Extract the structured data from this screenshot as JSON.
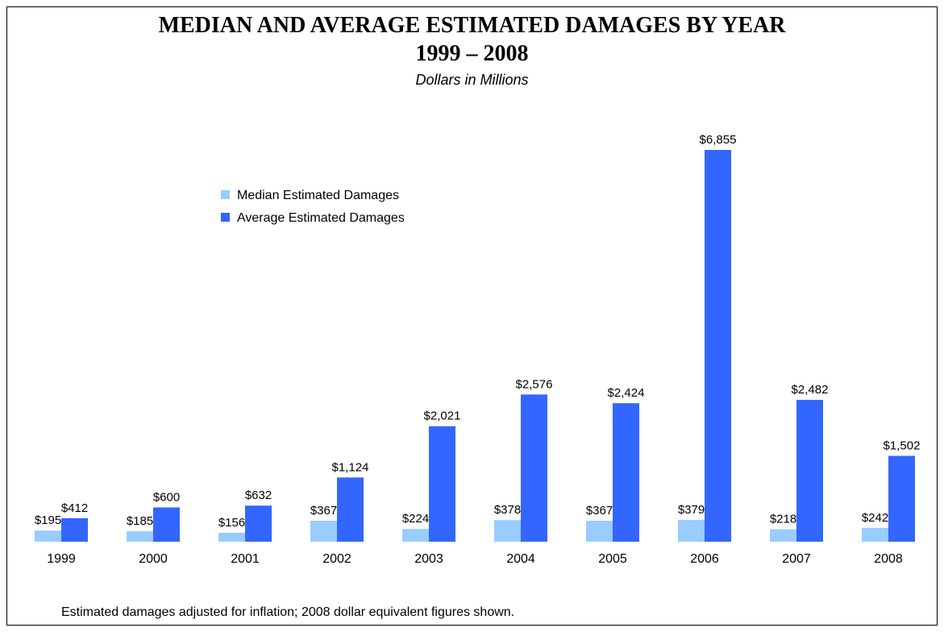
{
  "colors": {
    "median": "#99CCFF",
    "average": "#3366FF"
  },
  "chart_data": {
    "type": "bar",
    "title": "MEDIAN AND AVERAGE ESTIMATED DAMAGES BY YEAR",
    "title_line2": "1999 – 2008",
    "subtitle": "Dollars in Millions",
    "xlabel": "",
    "ylabel": "",
    "ylim": [
      0,
      6855
    ],
    "grid": false,
    "legend_placement": "upper-left",
    "categories": [
      "1999",
      "2000",
      "2001",
      "2002",
      "2003",
      "2004",
      "2005",
      "2006",
      "2007",
      "2008"
    ],
    "series": [
      {
        "name": "Median Estimated Damages",
        "values": [
          195,
          185,
          156,
          367,
          224,
          378,
          367,
          379,
          218,
          242
        ],
        "labels": [
          "$195",
          "$185",
          "$156",
          "$367",
          "$224",
          "$378",
          "$367",
          "$379",
          "$218",
          "$242"
        ]
      },
      {
        "name": "Average Estimated Damages",
        "values": [
          412,
          600,
          632,
          1124,
          2021,
          2576,
          2424,
          6855,
          2482,
          1502
        ],
        "labels": [
          "$412",
          "$600",
          "$632",
          "$1,124",
          "$2,021",
          "$2,576",
          "$2,424",
          "$6,855",
          "$2,482",
          "$1,502"
        ]
      }
    ],
    "footnote": "Estimated damages adjusted for inflation; 2008 dollar equivalent figures shown."
  }
}
